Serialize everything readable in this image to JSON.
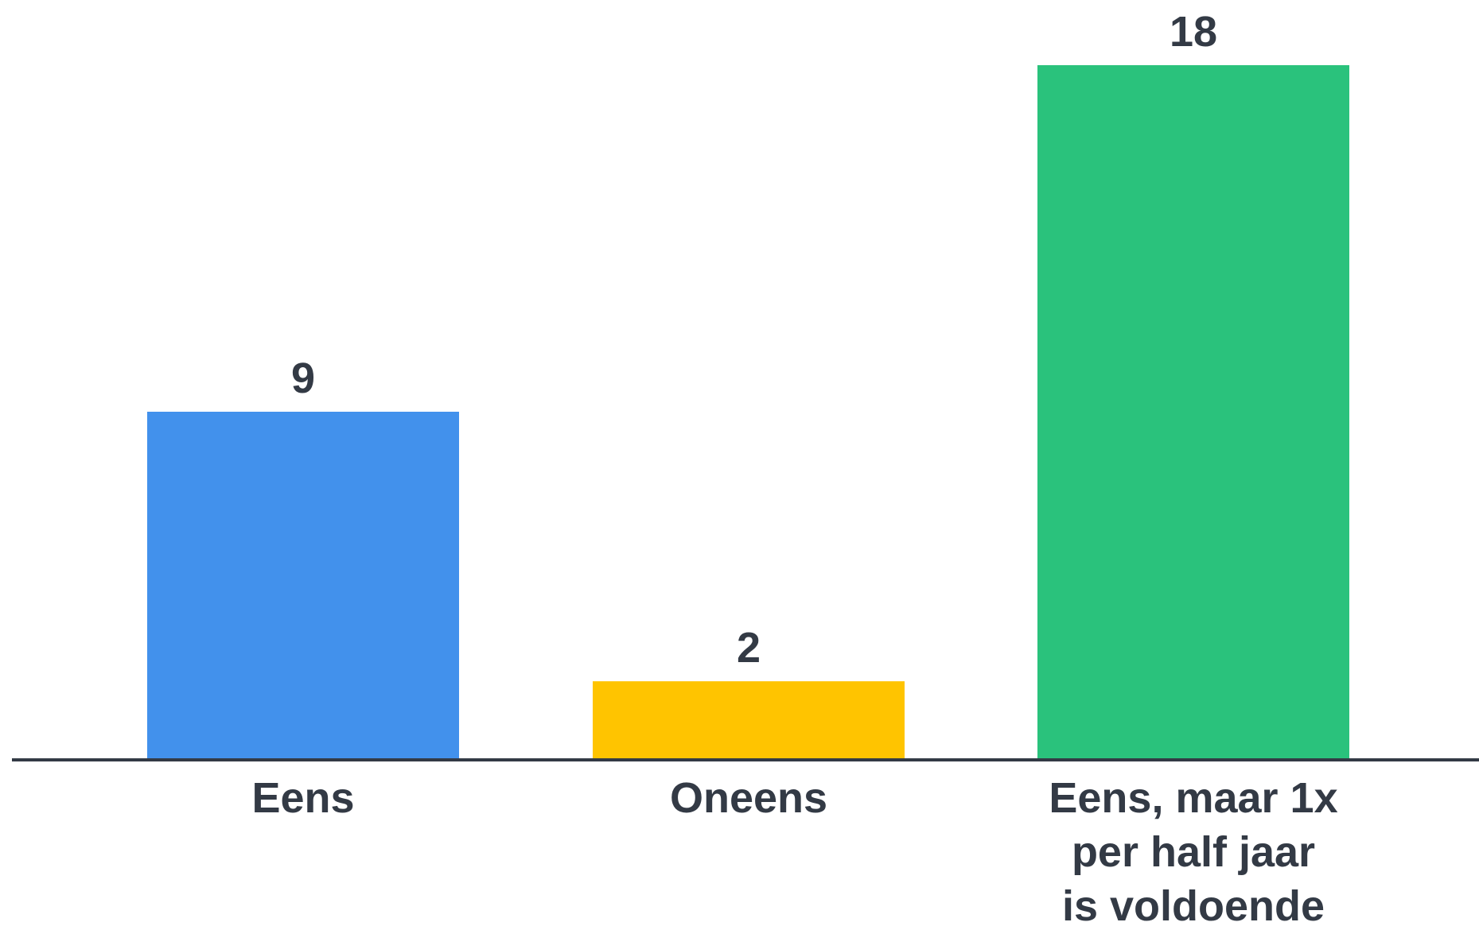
{
  "chart_data": {
    "type": "bar",
    "categories": [
      [
        "Eens"
      ],
      [
        "Oneens"
      ],
      [
        "Eens, maar 1x",
        "per half jaar",
        "is voldoende"
      ]
    ],
    "values": [
      9,
      2,
      18
    ],
    "colors": [
      "#4291EC",
      "#FFC400",
      "#2AC27C"
    ],
    "axis_color": "#333A45",
    "ylim": [
      0,
      18
    ],
    "title": "",
    "xlabel": "",
    "ylabel": "",
    "grid": false,
    "legend": "none"
  }
}
